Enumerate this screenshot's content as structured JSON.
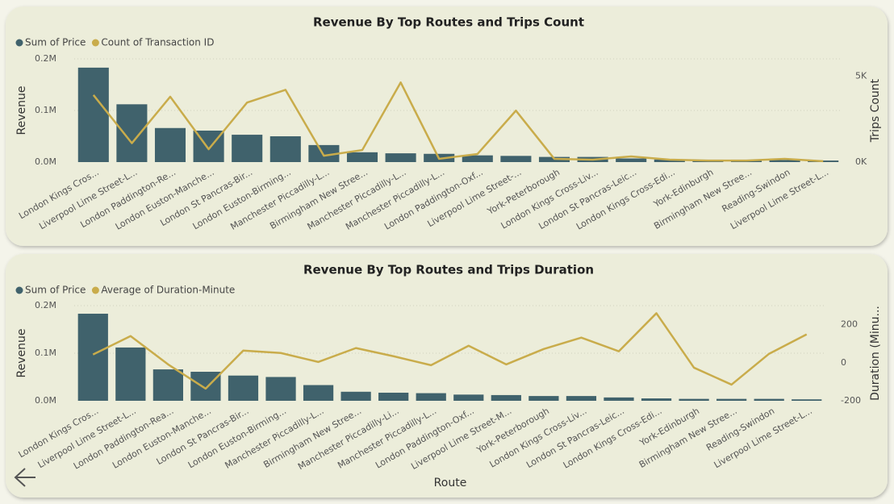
{
  "chart_data": [
    {
      "type": "combo",
      "title": "Revenue By Top Routes and Trips Count",
      "y_label": "Revenue",
      "y2_label": "Trips Count",
      "categories": [
        "London Kings Cros...",
        "Liverpool Lime Street-L...",
        "London Paddington-Re...",
        "London Euston-Manche...",
        "London St Pancras-Bir...",
        "London Euston-Birming...",
        "Manchester Piccadilly-L...",
        "Birmingham New Stree...",
        "Manchester Piccadilly-L...",
        "Manchester Piccadilly-L...",
        "London Paddington-Oxf...",
        "Liverpool Lime Street-...",
        "York-Peterborough",
        "London Kings Cross-Liv...",
        "London St Pancras-Leic...",
        "London Kings Cross-Edi...",
        "York-Edinburgh",
        "Birmingham New Stree...",
        "Reading-Swindon",
        "Liverpool Lime Street-L..."
      ],
      "series": [
        {
          "name": "Sum of Price",
          "mark": "bar",
          "color": "#40626c",
          "values": [
            183000,
            112000,
            66000,
            61000,
            53000,
            50000,
            33000,
            19000,
            17000,
            16000,
            13000,
            12000,
            10000,
            10000,
            7000,
            5000,
            4000,
            4000,
            4000,
            3000
          ]
        },
        {
          "name": "Count of Transaction ID",
          "mark": "line",
          "axis": "y2",
          "color": "#c9ac4b",
          "values": [
            3900,
            1100,
            3800,
            750,
            3460,
            4200,
            370,
            700,
            4630,
            190,
            470,
            2990,
            190,
            140,
            330,
            140,
            90,
            90,
            190,
            50
          ]
        }
      ],
      "ylim": [
        0,
        200000
      ],
      "yticks": [
        {
          "value": 0,
          "label": "0.0M"
        },
        {
          "value": 100000,
          "label": "0.1M"
        },
        {
          "value": 200000,
          "label": "0.2M"
        }
      ],
      "y2lim": [
        0,
        6000
      ],
      "y2ticks": [
        {
          "value": 0,
          "label": "0K"
        },
        {
          "value": 5000,
          "label": "5K"
        }
      ],
      "grid": true
    },
    {
      "type": "combo",
      "title": "Revenue By Top Routes and Trips Duration",
      "x_label": "Route",
      "y_label": "Revenue",
      "y2_label": "Duration (Minu...",
      "categories": [
        "London Kings Cros...",
        "Liverpool Lime Street-L...",
        "London Paddington-Rea...",
        "London Euston-Manche...",
        "London St Pancras-Bir...",
        "London Euston-Birming...",
        "Manchester Piccadilly-L...",
        "Birmingham New Stree...",
        "Manchester Piccadilly-Li...",
        "Manchester Piccadilly-L...",
        "London Paddington-Oxf...",
        "Liverpool Lime Street-M...",
        "York-Peterborough",
        "London Kings Cross-Liv...",
        "London St Pancras-Leic...",
        "London Kings Cross-Edi...",
        "York-Edinburgh",
        "Birmingham New Stree...",
        "Reading-Swindon",
        "Liverpool Lime Street-L..."
      ],
      "series": [
        {
          "name": "Sum of Price",
          "mark": "bar",
          "color": "#40626c",
          "values": [
            183000,
            112000,
            66000,
            61000,
            53000,
            50000,
            33000,
            19000,
            17000,
            16000,
            13000,
            12000,
            10000,
            10000,
            7000,
            5000,
            4000,
            4000,
            4000,
            3000
          ]
        },
        {
          "name": "Average of Duration-Minute",
          "mark": "line",
          "axis": "y2",
          "color": "#c9ac4b",
          "values": [
            43,
            140,
            -9,
            -136,
            64,
            51,
            4,
            77,
            34,
            -13,
            89,
            -9,
            72,
            132,
            60,
            260,
            -26,
            -115,
            47,
            149
          ]
        }
      ],
      "ylim": [
        0,
        200000
      ],
      "yticks": [
        {
          "value": 0,
          "label": "0.0M"
        },
        {
          "value": 100000,
          "label": "0.1M"
        },
        {
          "value": 200000,
          "label": "0.2M"
        }
      ],
      "y2lim": [
        -200,
        300
      ],
      "y2ticks": [
        -200,
        0,
        200
      ],
      "grid": true
    }
  ]
}
